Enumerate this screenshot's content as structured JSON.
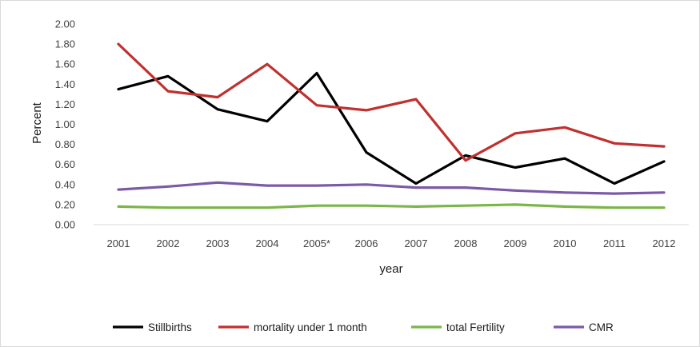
{
  "chart_data": {
    "type": "line",
    "title": "",
    "xlabel": "year",
    "ylabel": "Percent",
    "categories": [
      "2001",
      "2002",
      "2003",
      "2004",
      "2005*",
      "2006",
      "2007",
      "2008",
      "2009",
      "2010",
      "2011",
      "2012"
    ],
    "ylim": [
      0,
      2.0
    ],
    "yticks": [
      "0.00",
      "0.20",
      "0.40",
      "0.60",
      "0.80",
      "1.00",
      "1.20",
      "1.40",
      "1.60",
      "1.80",
      "2.00"
    ],
    "grid": false,
    "legend_position": "bottom",
    "series": [
      {
        "name": "Stillbirths",
        "color": "#000000",
        "values": [
          1.35,
          1.48,
          1.15,
          1.03,
          1.51,
          0.72,
          0.41,
          0.69,
          0.57,
          0.66,
          0.41,
          0.63
        ]
      },
      {
        "name": "mortality under 1 month",
        "color": "#c0302f",
        "values": [
          1.8,
          1.33,
          1.27,
          1.6,
          1.19,
          1.14,
          1.25,
          0.64,
          0.91,
          0.97,
          0.81,
          0.78
        ]
      },
      {
        "name": "total Fertility",
        "color": "#7ab648",
        "values": [
          0.18,
          0.17,
          0.17,
          0.17,
          0.19,
          0.19,
          0.18,
          0.19,
          0.2,
          0.18,
          0.17,
          0.17
        ]
      },
      {
        "name": "CMR",
        "color": "#7b5aa6",
        "values": [
          0.35,
          0.38,
          0.42,
          0.39,
          0.39,
          0.4,
          0.37,
          0.37,
          0.34,
          0.32,
          0.31,
          0.32
        ]
      }
    ]
  }
}
